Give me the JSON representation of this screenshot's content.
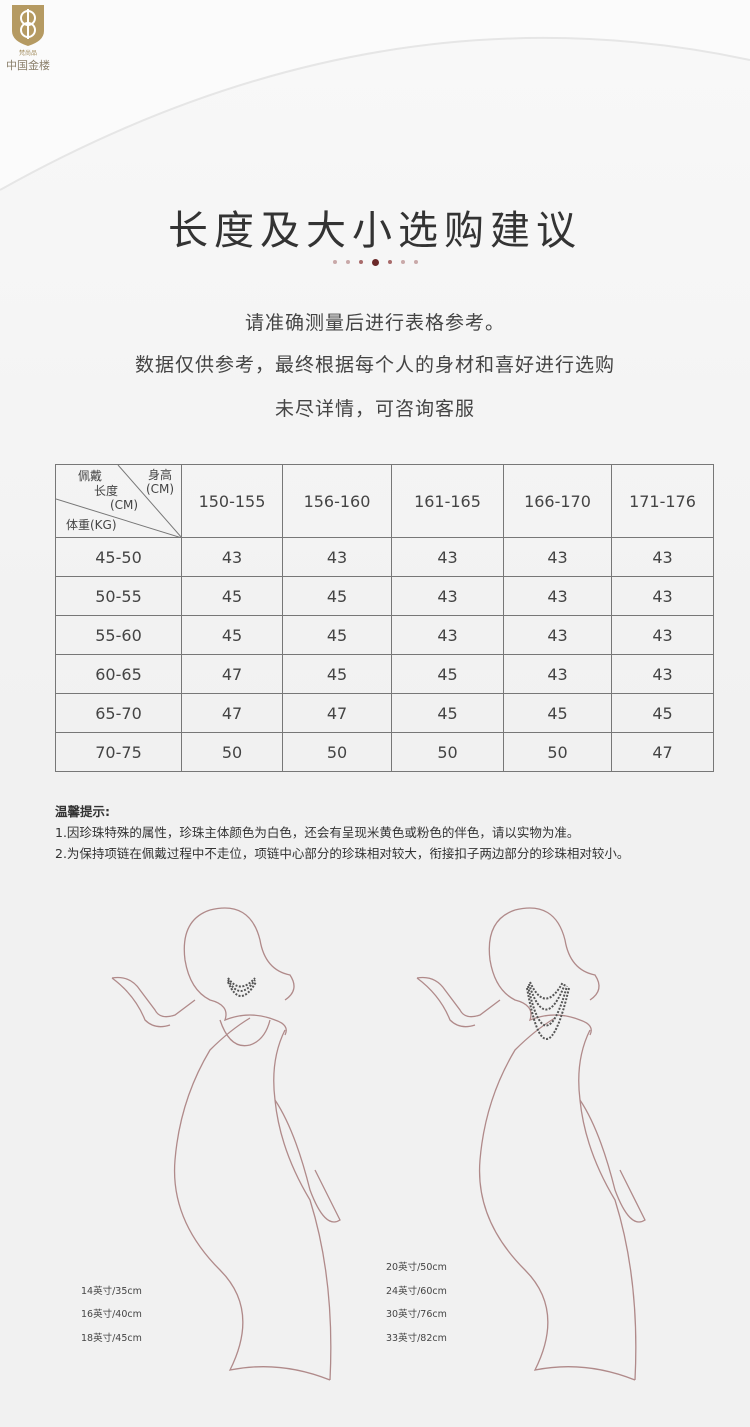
{
  "brand": {
    "name": "中国金楼",
    "sub": "梵尚品"
  },
  "title": "长度及大小选购建议",
  "intro": [
    "请准确测量后进行表格参考。",
    "数据仅供参考，最终根据每个人的身材和喜好进行选购",
    "未尽详情，可咨询客服"
  ],
  "table": {
    "corner": {
      "height": "身高",
      "height_unit": "(CM)",
      "length1": "佩戴",
      "length2": "长度",
      "length_unit": "(CM)",
      "weight": "体重(KG)"
    },
    "columns": [
      "150-155",
      "156-160",
      "161-165",
      "166-170",
      "171-176"
    ],
    "rows": [
      {
        "weight": "45-50",
        "values": [
          "43",
          "43",
          "43",
          "43",
          "43"
        ]
      },
      {
        "weight": "50-55",
        "values": [
          "45",
          "45",
          "43",
          "43",
          "43"
        ]
      },
      {
        "weight": "55-60",
        "values": [
          "45",
          "45",
          "43",
          "43",
          "43"
        ]
      },
      {
        "weight": "60-65",
        "values": [
          "47",
          "45",
          "45",
          "43",
          "43"
        ]
      },
      {
        "weight": "65-70",
        "values": [
          "47",
          "47",
          "45",
          "45",
          "45"
        ]
      },
      {
        "weight": "70-75",
        "values": [
          "50",
          "50",
          "50",
          "50",
          "47"
        ]
      }
    ]
  },
  "tips": {
    "heading": "温馨提示:",
    "items": [
      "1.因珍珠特殊的属性，珍珠主体颜色为白色，还会有呈现米黄色或粉色的伴色，请以实物为准。",
      "2.为保持项链在佩戴过程中不走位，项链中心部分的珍珠相对较大，衔接扣子两边部分的珍珠相对较小。"
    ]
  },
  "left_figure": {
    "labels": [
      "14英寸/35cm",
      "16英寸/40cm",
      "18英寸/45cm"
    ]
  },
  "right_figure": {
    "labels": [
      "20英寸/50cm",
      "24英寸/60cm",
      "30英寸/76cm",
      "33英寸/82cm"
    ]
  },
  "colors": {
    "accent": "#6b2a2a",
    "outline": "#b08a8a",
    "necklace": "#555555",
    "logo": "#b59a62"
  }
}
